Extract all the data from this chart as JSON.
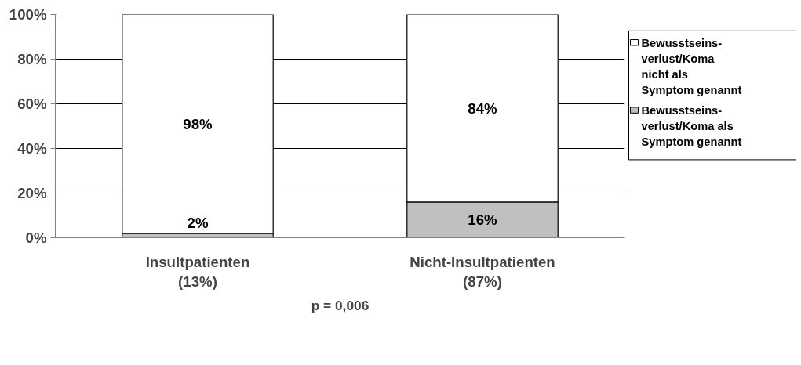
{
  "chart_data": {
    "type": "bar",
    "stacked": true,
    "categories": [
      "Insultpatienten\n(13%)",
      "Nicht-Insultpatienten\n(87%)"
    ],
    "series": [
      {
        "name": "Bewusstseins-\nverlust/Koma als\nSymptom genannt",
        "color": "#c0c0c0",
        "values": [
          2,
          16
        ],
        "value_labels": [
          "2%",
          "16%"
        ]
      },
      {
        "name": "Bewusstseins-\nverlust/Koma\nnicht als\nSymptom genannt",
        "color": "#ffffff",
        "values": [
          98,
          84
        ],
        "value_labels": [
          "98%",
          "84%"
        ]
      }
    ],
    "ylim": [
      0,
      100
    ],
    "yticks": [
      {
        "value": 0,
        "label": "0%"
      },
      {
        "value": 20,
        "label": "20%"
      },
      {
        "value": 40,
        "label": "40%"
      },
      {
        "value": 60,
        "label": "60%"
      },
      {
        "value": 80,
        "label": "80%"
      },
      {
        "value": 100,
        "label": "100%"
      }
    ],
    "grid": "y",
    "legend": "right",
    "annotations": [
      "p = 0,006"
    ]
  }
}
